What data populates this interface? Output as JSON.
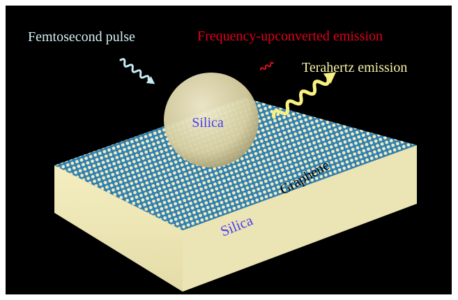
{
  "labels": {
    "femtosecond": "Femtosecond pulse",
    "upconverted": "Frequency-upconverted emission",
    "terahertz": "Terahertz emission",
    "sphere": "Silica",
    "graphene": "Graphene",
    "substrate": "Silica"
  }
}
